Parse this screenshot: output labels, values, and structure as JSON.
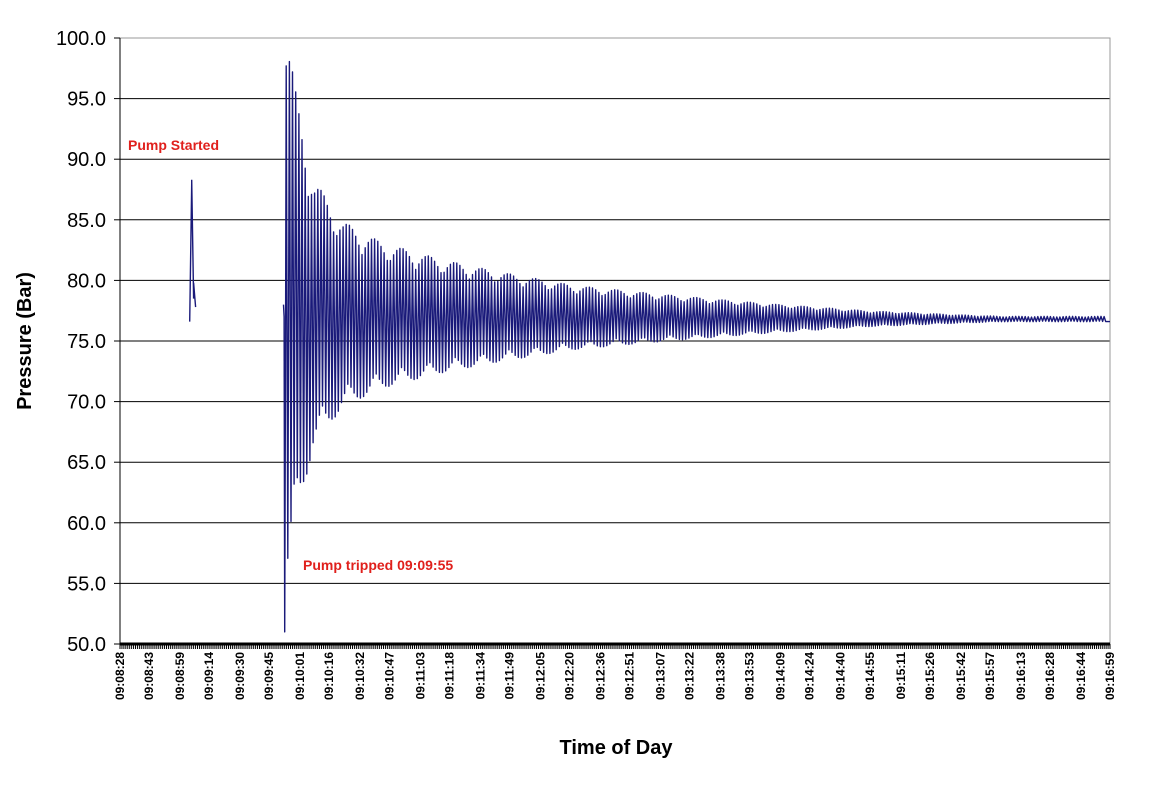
{
  "chart_data": {
    "type": "line",
    "title": "",
    "xlabel": "Time of Day",
    "ylabel": "Pressure (Bar)",
    "ylim": [
      50,
      100
    ],
    "xlim": [
      "09:08:28",
      "09:16:59"
    ],
    "yticks": [
      "50.0",
      "55.0",
      "60.0",
      "65.0",
      "70.0",
      "75.0",
      "80.0",
      "85.0",
      "90.0",
      "95.0",
      "100.0"
    ],
    "xticks": [
      "09:08:28",
      "09:08:43",
      "09:08:59",
      "09:09:14",
      "09:09:30",
      "09:09:45",
      "09:10:01",
      "09:10:16",
      "09:10:32",
      "09:10:47",
      "09:11:03",
      "09:11:18",
      "09:11:34",
      "09:11:49",
      "09:12:05",
      "09:12:20",
      "09:12:36",
      "09:12:51",
      "09:13:07",
      "09:13:22",
      "09:13:38",
      "09:13:53",
      "09:14:09",
      "09:14:24",
      "09:14:40",
      "09:14:55",
      "09:15:11",
      "09:15:26",
      "09:15:42",
      "09:15:57",
      "09:16:13",
      "09:16:28",
      "09:16:44",
      "09:16:59"
    ],
    "grid": true,
    "legend": "none",
    "series_color": "#1a1a7a",
    "segment_1": {
      "x": [
        "09:09:04",
        "09:09:05",
        "09:09:05",
        "09:09:06",
        "09:09:06",
        "09:09:07",
        "09:09:07"
      ],
      "y": [
        76.6,
        88.0,
        88.3,
        78.5,
        79.8,
        77.8,
        77.8
      ]
    },
    "segment_2": {
      "start": "09:09:53",
      "base": 76.8,
      "oscillation": {
        "period_seconds": 1.63,
        "envelope_seconds": [
          0,
          6,
          15,
          30,
          50,
          80,
          110,
          150,
          200,
          250,
          300,
          350,
          370
        ],
        "envelope_amplitude": [
          22,
          16,
          10,
          7,
          5.5,
          4.3,
          3.4,
          2.4,
          1.7,
          1.1,
          0.6,
          0.3,
          0.2
        ],
        "first_peak": 97.7,
        "first_trough": 51.0,
        "end": "09:16:59",
        "end_value": 76.6
      }
    },
    "annotations": [
      {
        "text": "Pump Started"
      },
      {
        "text": "Pump tripped 09:09:55"
      }
    ]
  }
}
